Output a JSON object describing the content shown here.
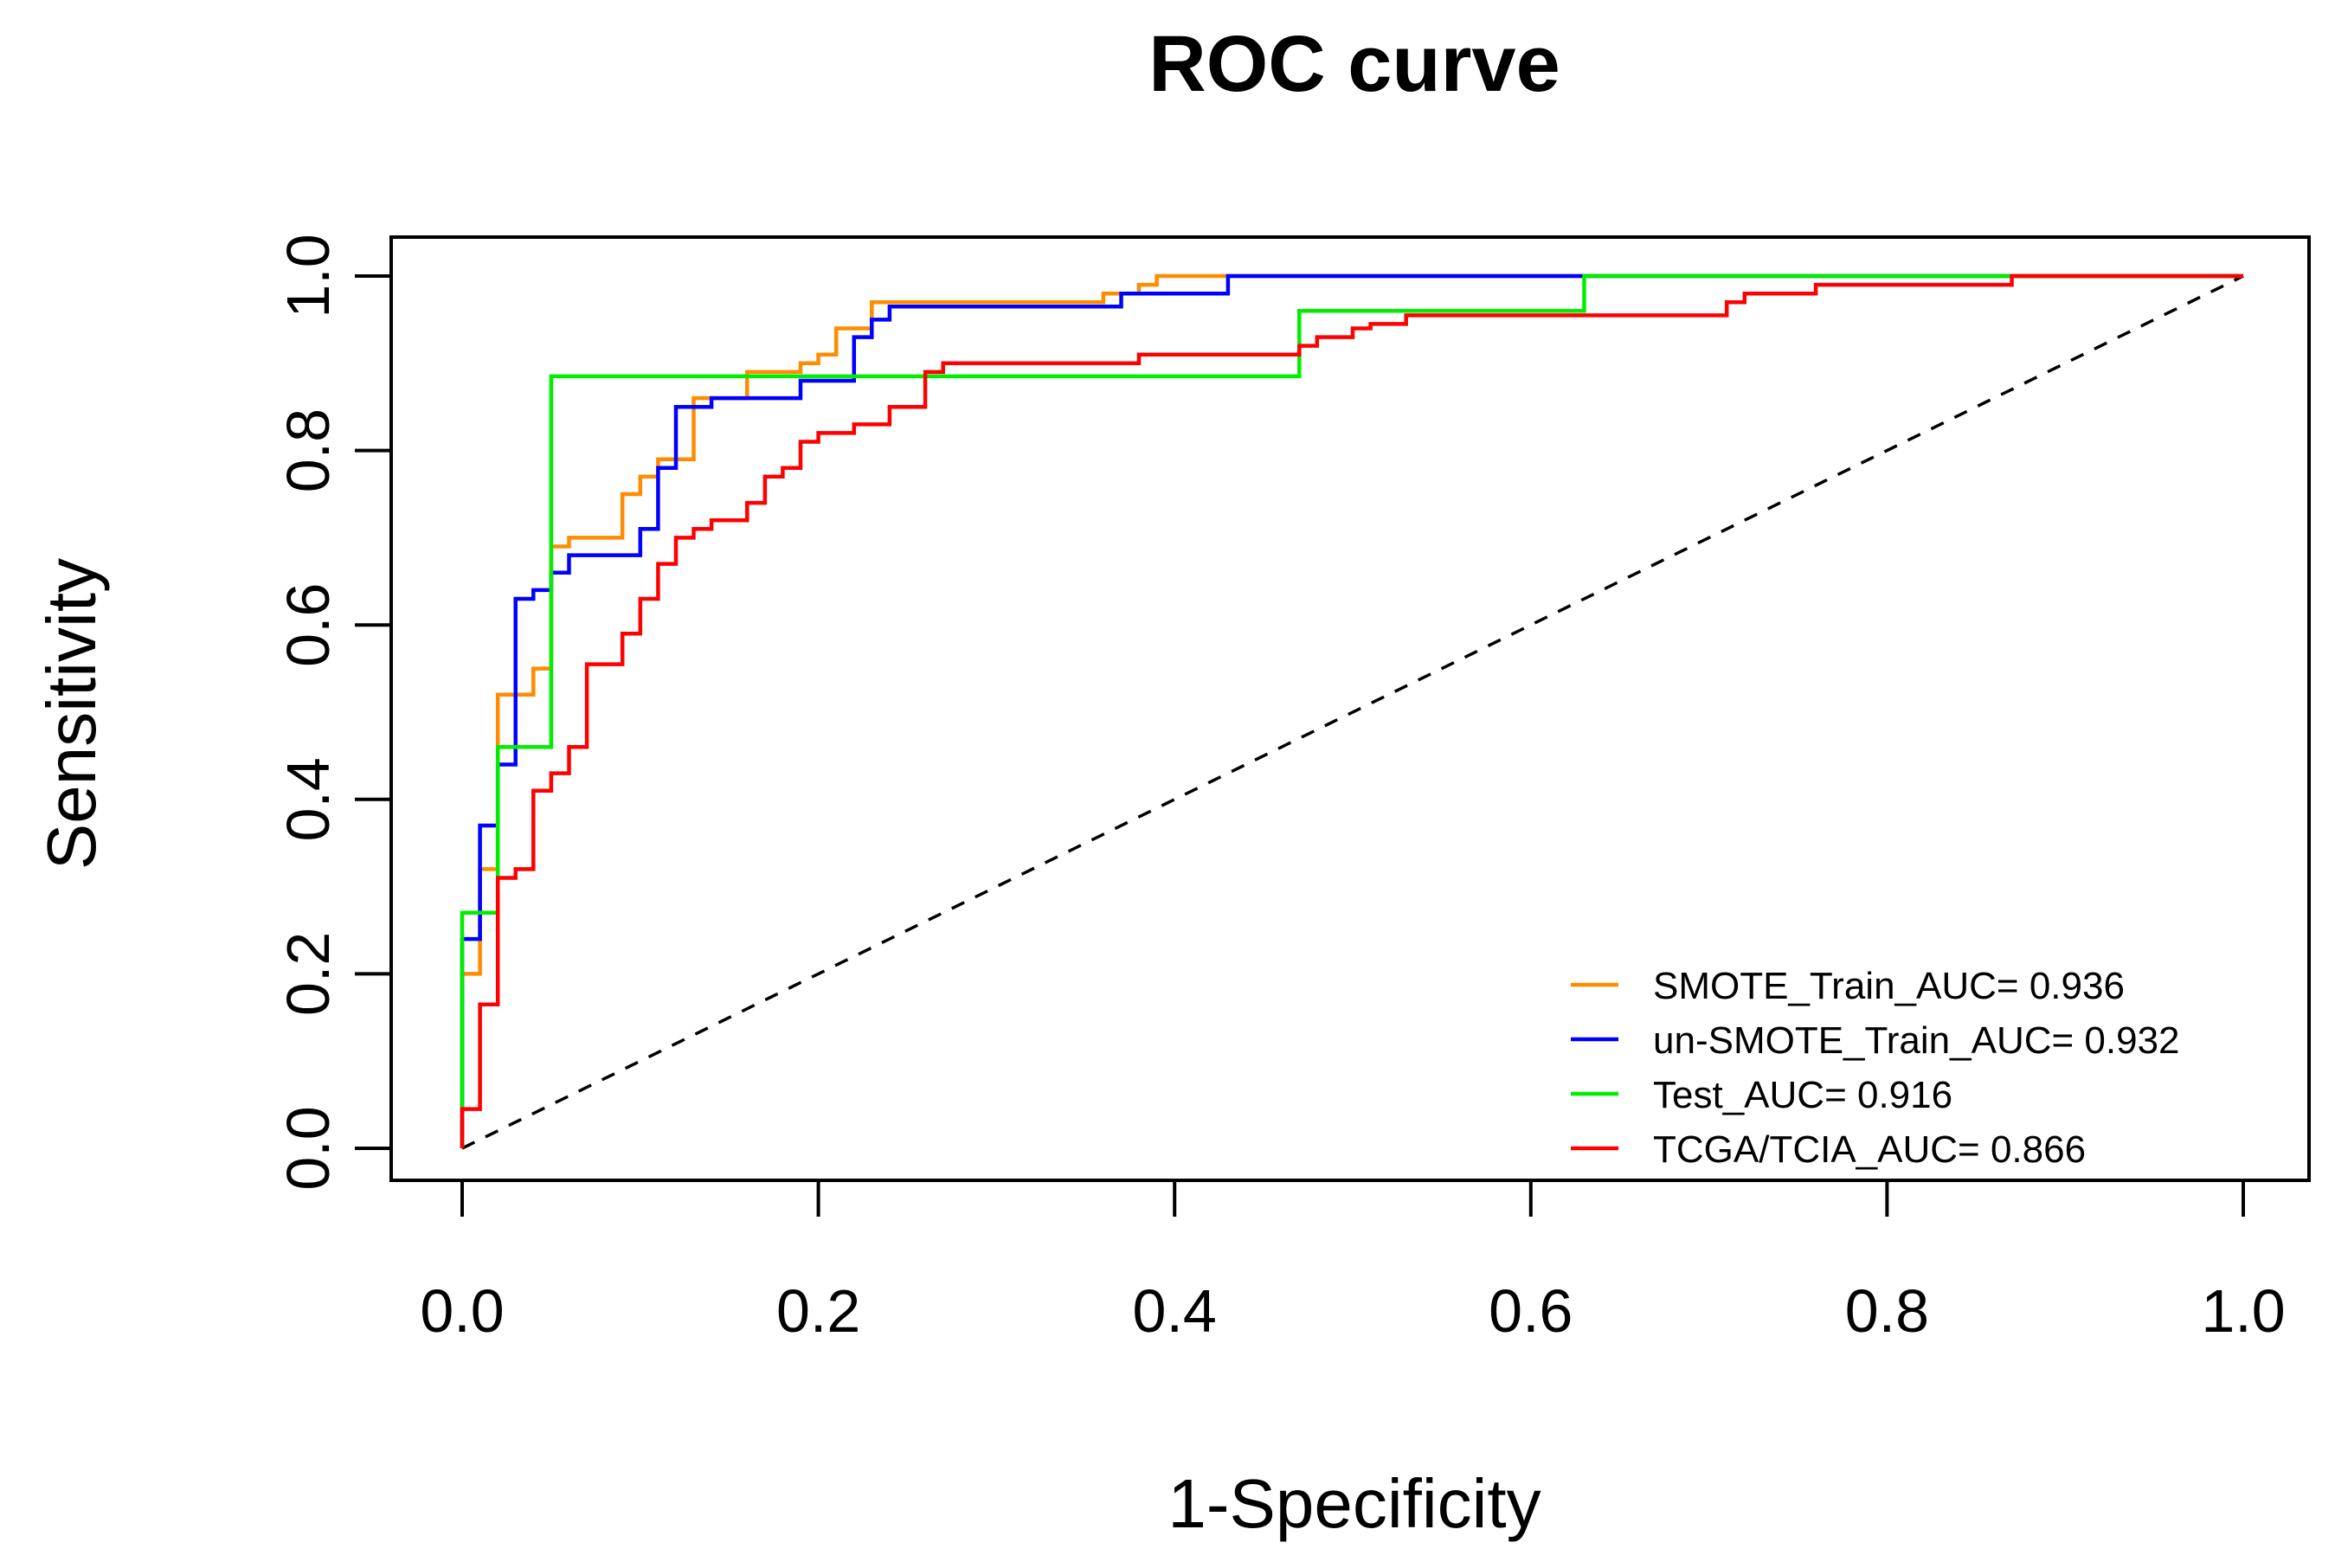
{
  "chart_data": {
    "type": "line",
    "title": "ROC curve",
    "xlabel": "1-Specificity",
    "ylabel": "Sensitivity",
    "xlim": [
      -0.04,
      1.04
    ],
    "ylim": [
      -0.04,
      1.04
    ],
    "xticks": [
      0.0,
      0.2,
      0.4,
      0.6,
      0.8,
      1.0
    ],
    "yticks": [
      0.0,
      0.2,
      0.4,
      0.6,
      0.8,
      1.0
    ],
    "xtick_labels": [
      "0.0",
      "0.2",
      "0.4",
      "0.6",
      "0.8",
      "1.0"
    ],
    "ytick_labels": [
      "0.0",
      "0.2",
      "0.4",
      "0.6",
      "0.8",
      "1.0"
    ],
    "grid": false,
    "legend_position": "bottom-right",
    "reference_line": {
      "name": "chance",
      "x": [
        0,
        1
      ],
      "y": [
        0,
        1
      ],
      "style": "dashed",
      "color": "#000000"
    },
    "series": [
      {
        "name": "SMOTE_Train_AUC= 0.936",
        "color": "#FF8C00",
        "x": [
          0,
          0,
          0.01,
          0.01,
          0.02,
          0.02,
          0.02,
          0.03,
          0.03,
          0.04,
          0.04,
          0.05,
          0.05,
          0.06,
          0.06,
          0.09,
          0.09,
          0.1,
          0.1,
          0.11,
          0.11,
          0.13,
          0.13,
          0.16,
          0.16,
          0.19,
          0.19,
          0.2,
          0.2,
          0.21,
          0.21,
          0.23,
          0.23,
          0.36,
          0.36,
          0.38,
          0.38,
          0.39,
          0.39,
          0.63,
          0.63,
          1.0
        ],
        "y": [
          0,
          0.2,
          0.2,
          0.32,
          0.32,
          0.44,
          0.52,
          0.52,
          0.52,
          0.52,
          0.55,
          0.55,
          0.69,
          0.69,
          0.7,
          0.7,
          0.75,
          0.75,
          0.77,
          0.77,
          0.79,
          0.79,
          0.86,
          0.86,
          0.89,
          0.89,
          0.9,
          0.9,
          0.91,
          0.91,
          0.94,
          0.94,
          0.97,
          0.97,
          0.98,
          0.98,
          0.99,
          0.99,
          1.0,
          1.0,
          1.0,
          1.0
        ]
      },
      {
        "name": "un-SMOTE_Train_AUC= 0.932",
        "color": "#0000FF",
        "x": [
          0,
          0,
          0.01,
          0.01,
          0.02,
          0.02,
          0.03,
          0.03,
          0.04,
          0.04,
          0.05,
          0.05,
          0.06,
          0.06,
          0.1,
          0.1,
          0.11,
          0.11,
          0.12,
          0.12,
          0.14,
          0.14,
          0.19,
          0.19,
          0.22,
          0.22,
          0.23,
          0.23,
          0.24,
          0.24,
          0.37,
          0.37,
          0.43,
          0.43,
          1.0
        ],
        "y": [
          0,
          0.24,
          0.24,
          0.37,
          0.37,
          0.44,
          0.44,
          0.63,
          0.63,
          0.64,
          0.64,
          0.66,
          0.66,
          0.68,
          0.68,
          0.71,
          0.71,
          0.78,
          0.78,
          0.85,
          0.85,
          0.86,
          0.86,
          0.88,
          0.88,
          0.93,
          0.93,
          0.95,
          0.95,
          0.965,
          0.965,
          0.98,
          0.98,
          1.0,
          1.0
        ]
      },
      {
        "name": "Test_AUC= 0.916",
        "color": "#00EE00",
        "x": [
          0,
          0,
          0.02,
          0.02,
          0.03,
          0.03,
          0.05,
          0.05,
          0.47,
          0.47,
          0.63,
          0.63,
          1.0
        ],
        "y": [
          0,
          0.27,
          0.27,
          0.46,
          0.46,
          0.46,
          0.46,
          0.885,
          0.885,
          0.96,
          0.96,
          1.0,
          1.0
        ]
      },
      {
        "name": "TCGA/TCIA_AUC= 0.866",
        "color": "#FF0000",
        "x": [
          0,
          0,
          0.01,
          0.01,
          0.02,
          0.02,
          0.03,
          0.03,
          0.04,
          0.04,
          0.05,
          0.05,
          0.06,
          0.06,
          0.07,
          0.07,
          0.09,
          0.09,
          0.1,
          0.1,
          0.11,
          0.11,
          0.12,
          0.12,
          0.13,
          0.13,
          0.14,
          0.14,
          0.16,
          0.16,
          0.17,
          0.17,
          0.18,
          0.18,
          0.19,
          0.19,
          0.2,
          0.2,
          0.22,
          0.22,
          0.24,
          0.24,
          0.26,
          0.26,
          0.27,
          0.27,
          0.38,
          0.38,
          0.47,
          0.47,
          0.48,
          0.48,
          0.5,
          0.5,
          0.51,
          0.51,
          0.53,
          0.53,
          0.58,
          0.58,
          0.71,
          0.71,
          0.72,
          0.72,
          0.76,
          0.76,
          0.87,
          0.87,
          1.0
        ],
        "y": [
          0,
          0.045,
          0.045,
          0.165,
          0.165,
          0.31,
          0.31,
          0.32,
          0.32,
          0.41,
          0.41,
          0.43,
          0.43,
          0.46,
          0.46,
          0.555,
          0.555,
          0.59,
          0.59,
          0.63,
          0.63,
          0.67,
          0.67,
          0.7,
          0.7,
          0.71,
          0.71,
          0.72,
          0.72,
          0.74,
          0.74,
          0.77,
          0.77,
          0.78,
          0.78,
          0.81,
          0.81,
          0.82,
          0.82,
          0.83,
          0.83,
          0.85,
          0.85,
          0.89,
          0.89,
          0.9,
          0.9,
          0.91,
          0.91,
          0.92,
          0.92,
          0.93,
          0.93,
          0.94,
          0.94,
          0.945,
          0.945,
          0.955,
          0.955,
          0.955,
          0.955,
          0.97,
          0.97,
          0.98,
          0.98,
          0.99,
          0.99,
          1.0,
          1.0
        ]
      }
    ]
  }
}
